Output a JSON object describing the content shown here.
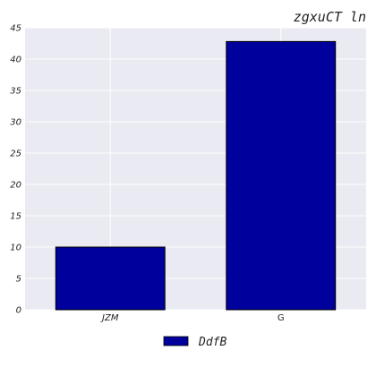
{
  "chart_data": {
    "type": "bar",
    "title": "zgxuCT ln",
    "xlabel": "",
    "ylabel": "",
    "categories": [
      "JZM",
      "G"
    ],
    "series": [
      {
        "name": "DdfB",
        "values": [
          10,
          42.8
        ],
        "color": "#00009c"
      }
    ],
    "ylim": [
      0,
      45
    ],
    "yticks": [
      0,
      5,
      10,
      15,
      20,
      25,
      30,
      35,
      40,
      45
    ],
    "grid": true,
    "legend_position": "bottom-center",
    "background": "#eaeaf2"
  }
}
